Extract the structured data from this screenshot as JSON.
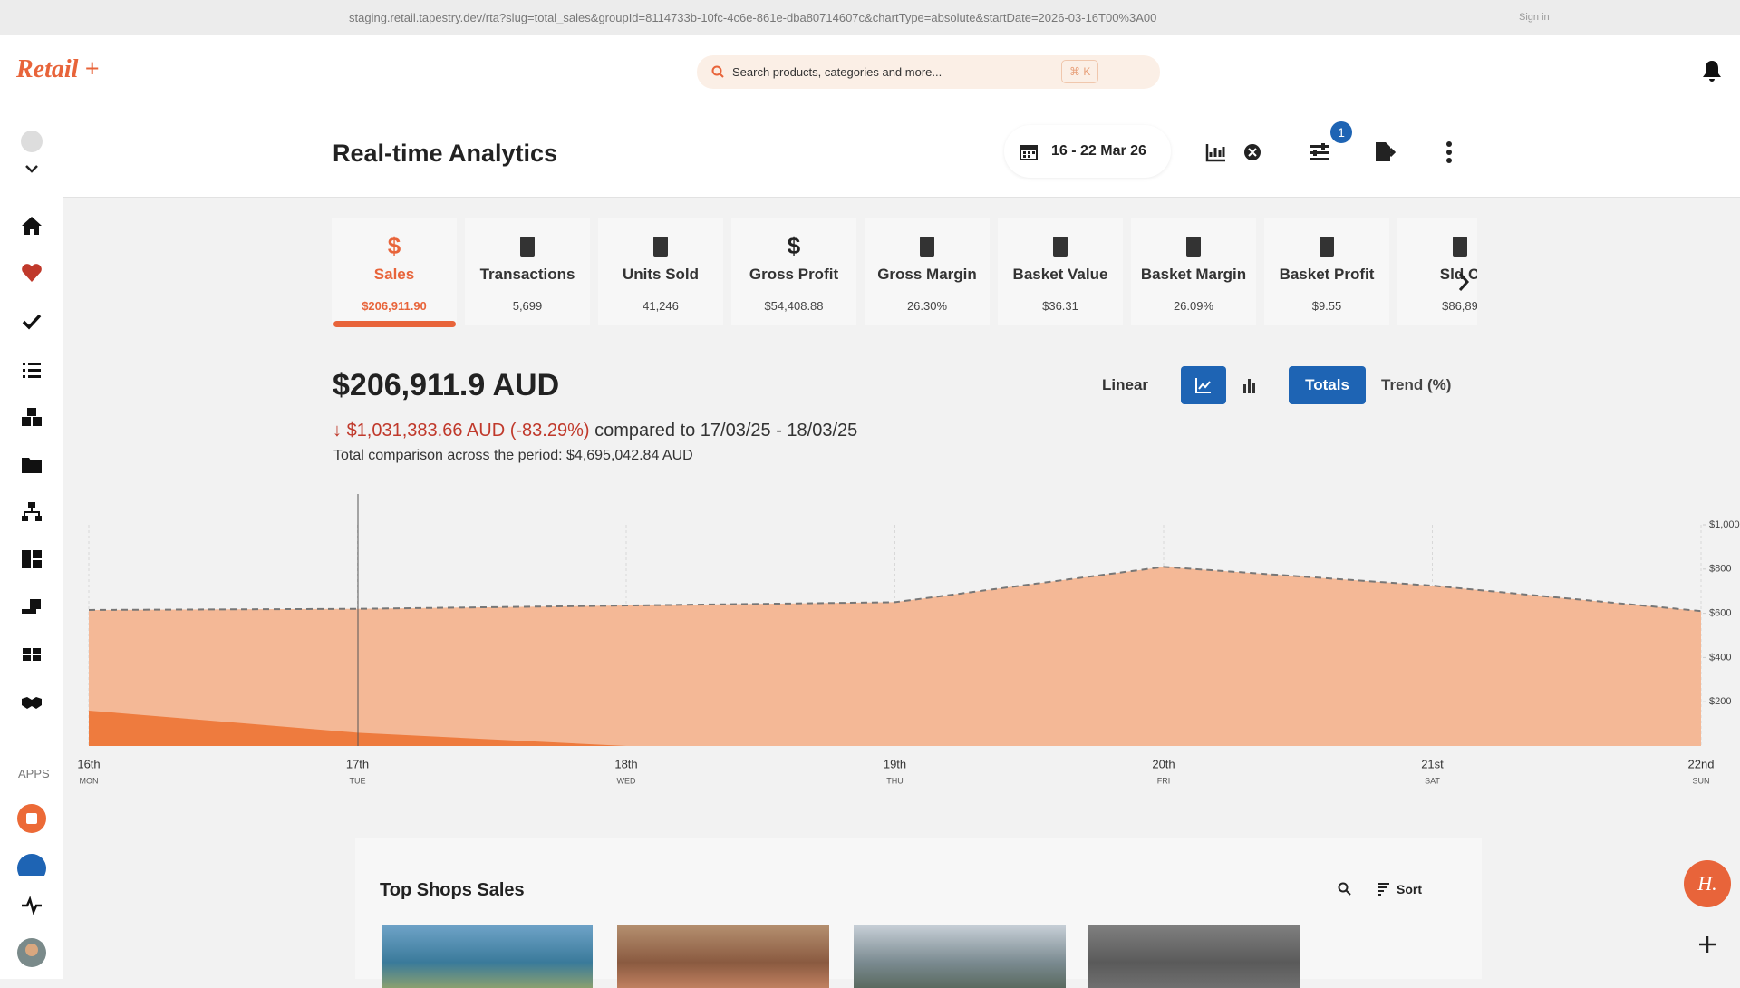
{
  "browser": {
    "url": "staging.retail.tapestry.dev/rta?slug=total_sales&groupId=8114733b-10fc-4c6e-861e-dba80714607c&chartType=absolute&startDate=2026-03-16T00%3A00",
    "sign_in": "Sign in"
  },
  "header": {
    "logo": "Retail +",
    "search_placeholder": "Search products, categories and more...",
    "shortcut": "⌘ K"
  },
  "sidebar": {
    "apps_label": "APPS"
  },
  "page": {
    "title": "Real-time Analytics",
    "date_range": "16 - 22 Mar 26",
    "filter_badge": "1"
  },
  "metrics": [
    {
      "label": "Sales",
      "value": "$206,911.90"
    },
    {
      "label": "Transactions",
      "value": "5,699"
    },
    {
      "label": "Units Sold",
      "value": "41,246"
    },
    {
      "label": "Gross Profit",
      "value": "$54,408.88"
    },
    {
      "label": "Gross Margin",
      "value": "26.30%"
    },
    {
      "label": "Basket Value",
      "value": "$36.31"
    },
    {
      "label": "Basket Margin",
      "value": "26.09%"
    },
    {
      "label": "Basket Profit",
      "value": "$9.55"
    },
    {
      "label": "Sld O",
      "value": "$86,89"
    }
  ],
  "summary": {
    "total": "$206,911.9 AUD",
    "change": "$1,031,383.66 AUD (-83.29%)",
    "compared": "compared to 17/03/25 - 18/03/25",
    "total_comparison": "Total comparison across the period: $4,695,042.84 AUD",
    "scale": "Linear",
    "totals": "Totals",
    "trend": "Trend (%)"
  },
  "chart_data": {
    "type": "area",
    "categories": [
      "16th",
      "17th",
      "18th",
      "19th",
      "20th",
      "21st",
      "22nd"
    ],
    "weekdays": [
      "MON",
      "TUE",
      "WED",
      "THU",
      "FRI",
      "SAT",
      "SUN"
    ],
    "series": [
      {
        "color": "#f4b896",
        "line_color": "#777777",
        "dashed": true,
        "values": [
          615,
          620,
          635,
          650,
          810,
          725,
          610
        ]
      },
      {
        "color": "#ee7b3e",
        "dashed": false,
        "values": [
          160,
          60,
          0,
          0,
          0,
          0,
          0
        ]
      }
    ],
    "ylim": [
      0,
      1000
    ],
    "yticks": [
      {
        "value": 200,
        "label": "$200"
      },
      {
        "value": 400,
        "label": "$400"
      },
      {
        "value": 600,
        "label": "$600"
      },
      {
        "value": 800,
        "label": "$800"
      },
      {
        "value": 1000,
        "label": "$1,000"
      }
    ],
    "grid": true
  },
  "shops": {
    "title": "Top Shops Sales",
    "sort": "Sort"
  }
}
